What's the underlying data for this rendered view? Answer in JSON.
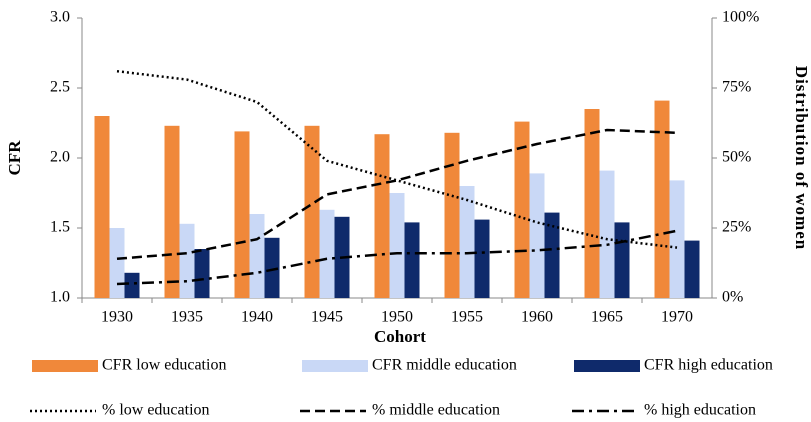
{
  "chart_data": {
    "type": "bar",
    "x_label": "Cohort",
    "y_label": "CFR",
    "y2_label": "Distribution of women",
    "categories": [
      "1930",
      "1935",
      "1940",
      "1945",
      "1950",
      "1955",
      "1960",
      "1965",
      "1970"
    ],
    "ylim": [
      1.0,
      3.0
    ],
    "yticks": [
      {
        "value": 1.0,
        "label": "1.0"
      },
      {
        "value": 1.5,
        "label": "1.5"
      },
      {
        "value": 2.0,
        "label": "2.0"
      },
      {
        "value": 2.5,
        "label": "2.5"
      },
      {
        "value": 3.0,
        "label": "3.0"
      }
    ],
    "y2lim": [
      0,
      100
    ],
    "y2ticks": [
      {
        "value": 0,
        "label": "0%"
      },
      {
        "value": 25,
        "label": "25%"
      },
      {
        "value": 50,
        "label": "50%"
      },
      {
        "value": 75,
        "label": "75%"
      },
      {
        "value": 100,
        "label": "100%"
      }
    ],
    "grid": false,
    "legend": "bottom",
    "series": [
      {
        "name": "CFR low education",
        "type": "bar",
        "color": "#f0883a",
        "values": [
          2.3,
          2.23,
          2.19,
          2.23,
          2.17,
          2.18,
          2.26,
          2.35,
          2.41
        ]
      },
      {
        "name": "CFR middle education",
        "type": "bar",
        "color": "#c9d8f6",
        "values": [
          1.5,
          1.53,
          1.6,
          1.63,
          1.75,
          1.8,
          1.89,
          1.91,
          1.84
        ]
      },
      {
        "name": "CFR high education",
        "type": "bar",
        "color": "#0f2a6b",
        "values": [
          1.18,
          1.35,
          1.43,
          1.58,
          1.54,
          1.56,
          1.61,
          1.54,
          1.41
        ]
      },
      {
        "name": "% low education",
        "type": "line",
        "axis": "y2",
        "dash": "dotted",
        "color": "#000000",
        "values": [
          81,
          78,
          70,
          49,
          42,
          35,
          27,
          21,
          18
        ]
      },
      {
        "name": "% middle education",
        "type": "line",
        "axis": "y2",
        "dash": "dashed",
        "color": "#000000",
        "values": [
          14,
          16,
          21,
          37,
          42,
          49,
          55,
          60,
          59
        ]
      },
      {
        "name": "% high education",
        "type": "line",
        "axis": "y2",
        "dash": "dashdot",
        "color": "#000000",
        "values": [
          5,
          6,
          9,
          14,
          16,
          16,
          17,
          19,
          24
        ]
      }
    ]
  }
}
